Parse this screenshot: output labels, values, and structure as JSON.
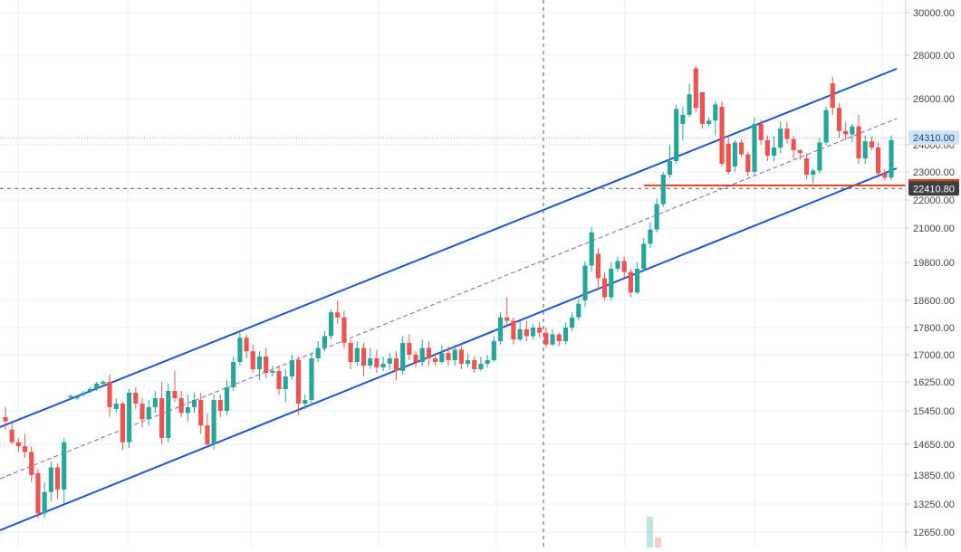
{
  "chart_data": {
    "type": "candlestick",
    "y_axis_ticks": [
      "30000.00",
      "28000.00",
      "26000.00",
      "24000.00",
      "23000.00",
      "22000.00",
      "21000.00",
      "19800.00",
      "18600.00",
      "17800.00",
      "17000.00",
      "16250.00",
      "15450.00",
      "14650.00",
      "13850.00",
      "13250.00",
      "12650.00"
    ],
    "ylim": [
      12400,
      30200
    ],
    "grid": true,
    "price_labels": [
      {
        "text": "24310.00",
        "value": 24310
      },
      {
        "text": "22410.80",
        "value": 22410.8
      }
    ],
    "crosshair_price": 22410.8,
    "horizontal_level": {
      "value": 22520
    },
    "colors": {
      "up": "#26a69a",
      "down": "#ef5350",
      "channel": "#1e53d6",
      "median": "#9c57c4",
      "level": "#d8431f",
      "grid": "#eaeff3",
      "axis_text": "#444444"
    },
    "candles": [
      [
        15300,
        15200,
        15550,
        15000
      ],
      [
        15000,
        14700,
        15150,
        14650
      ],
      [
        14700,
        14600,
        14800,
        14450
      ],
      [
        14600,
        14450,
        14900,
        14300
      ],
      [
        14450,
        13850,
        14600,
        13700
      ],
      [
        13900,
        13050,
        14000,
        12950
      ],
      [
        13050,
        13500,
        13700,
        12950
      ],
      [
        13500,
        14050,
        14200,
        13300
      ],
      [
        14050,
        13550,
        14150,
        13350
      ],
      [
        13550,
        14700,
        14800,
        13250
      ],
      [
        15820,
        15860,
        15900,
        15780
      ],
      [
        15800,
        15830,
        15860,
        15750
      ],
      [
        15900,
        15950,
        16000,
        15850
      ],
      [
        16000,
        16050,
        16100,
        15950
      ],
      [
        16050,
        16200,
        16250,
        16000
      ],
      [
        16200,
        16250,
        16300,
        16150
      ],
      [
        16250,
        15550,
        16450,
        15300
      ],
      [
        15500,
        15650,
        15800,
        15400
      ],
      [
        15650,
        14700,
        15700,
        14500
      ],
      [
        14700,
        15950,
        16050,
        14550
      ],
      [
        15950,
        15650,
        16100,
        15500
      ],
      [
        15650,
        15250,
        15800,
        15050
      ],
      [
        15250,
        15550,
        15750,
        15100
      ],
      [
        15550,
        15800,
        16000,
        15400
      ],
      [
        15800,
        14800,
        16250,
        14650
      ],
      [
        14800,
        16000,
        16200,
        14700
      ],
      [
        16000,
        15800,
        16550,
        15700
      ],
      [
        15800,
        15400,
        16000,
        15300
      ],
      [
        15400,
        15550,
        15900,
        15200
      ],
      [
        15550,
        15750,
        15950,
        15400
      ],
      [
        15750,
        15100,
        15950,
        14900
      ],
      [
        15100,
        14650,
        15400,
        14550
      ],
      [
        14650,
        15750,
        15900,
        14500
      ],
      [
        15750,
        15450,
        15900,
        15300
      ],
      [
        15450,
        16100,
        16300,
        15350
      ],
      [
        16100,
        16800,
        16950,
        16000
      ],
      [
        16800,
        17500,
        17650,
        16700
      ],
      [
        17500,
        17100,
        17600,
        16900
      ],
      [
        17100,
        16600,
        17300,
        16500
      ],
      [
        16600,
        16950,
        17100,
        16300
      ],
      [
        16950,
        16500,
        17200,
        16350
      ],
      [
        16500,
        16550,
        16700,
        16400
      ],
      [
        16550,
        16050,
        16700,
        15900
      ],
      [
        16050,
        16400,
        16600,
        15700
      ],
      [
        16400,
        16850,
        17000,
        16300
      ],
      [
        16850,
        15650,
        16950,
        15350
      ],
      [
        15650,
        15750,
        15900,
        15500
      ],
      [
        15750,
        16900,
        17050,
        15600
      ],
      [
        16900,
        17200,
        17400,
        16800
      ],
      [
        17200,
        17550,
        17700,
        17100
      ],
      [
        17550,
        18250,
        18350,
        17450
      ],
      [
        18250,
        18100,
        18600,
        17900
      ],
      [
        18100,
        17350,
        18300,
        17200
      ],
      [
        17350,
        16800,
        17450,
        16600
      ],
      [
        16800,
        17200,
        17400,
        16700
      ],
      [
        17200,
        16700,
        17350,
        16400
      ],
      [
        16700,
        16900,
        17200,
        16600
      ],
      [
        16900,
        16650,
        17150,
        16500
      ],
      [
        16650,
        16750,
        16950,
        16550
      ],
      [
        16750,
        16900,
        17050,
        16600
      ],
      [
        16900,
        16550,
        17100,
        16300
      ],
      [
        16550,
        17350,
        17550,
        16450
      ],
      [
        17350,
        17000,
        17600,
        16850
      ],
      [
        17000,
        16800,
        17100,
        16650
      ],
      [
        16800,
        17200,
        17450,
        16700
      ],
      [
        17200,
        16900,
        17400,
        16700
      ],
      [
        16900,
        16800,
        17050,
        16700
      ],
      [
        16800,
        17050,
        17300,
        16750
      ],
      [
        17050,
        16850,
        17250,
        16700
      ],
      [
        16850,
        17150,
        17300,
        16700
      ],
      [
        17150,
        16750,
        17250,
        16600
      ],
      [
        16750,
        16850,
        17050,
        16650
      ],
      [
        16850,
        16600,
        16950,
        16500
      ],
      [
        16600,
        16750,
        16950,
        16550
      ],
      [
        16750,
        16850,
        17000,
        16650
      ],
      [
        16850,
        17400,
        17550,
        16800
      ],
      [
        17400,
        18100,
        18250,
        17300
      ],
      [
        18100,
        18000,
        18700,
        17850
      ],
      [
        18000,
        17450,
        18100,
        17300
      ],
      [
        17450,
        17750,
        18000,
        17400
      ],
      [
        17750,
        17550,
        18000,
        17400
      ],
      [
        17550,
        17800,
        17900,
        17450
      ],
      [
        17800,
        17650,
        17950,
        17500
      ],
      [
        17650,
        17300,
        17800,
        17200
      ],
      [
        17300,
        17600,
        17750,
        17250
      ],
      [
        17600,
        17400,
        17650,
        17250
      ],
      [
        17400,
        17800,
        17950,
        17300
      ],
      [
        17800,
        18100,
        18250,
        17700
      ],
      [
        18100,
        18500,
        18650,
        18000
      ],
      [
        18600,
        19700,
        19850,
        18400
      ],
      [
        19700,
        20850,
        21050,
        19500
      ],
      [
        20100,
        19300,
        20300,
        18950
      ],
      [
        19300,
        18700,
        19500,
        18600
      ],
      [
        18700,
        19600,
        19800,
        18600
      ],
      [
        19600,
        19850,
        20000,
        19500
      ],
      [
        19850,
        19500,
        20000,
        19300
      ],
      [
        19500,
        18850,
        19600,
        18700
      ],
      [
        18850,
        19600,
        19800,
        18800
      ],
      [
        19600,
        20450,
        20650,
        19500
      ],
      [
        20450,
        20950,
        21200,
        20300
      ],
      [
        20950,
        21850,
        22050,
        20850
      ],
      [
        21850,
        22900,
        23000,
        21750
      ],
      [
        22900,
        23400,
        24000,
        22800
      ],
      [
        23400,
        25550,
        25750,
        23300
      ],
      [
        24900,
        25300,
        25650,
        24200
      ],
      [
        25300,
        26200,
        26700,
        25200
      ],
      [
        27400,
        25600,
        27500,
        25400
      ],
      [
        26300,
        24900,
        26300,
        24700
      ],
      [
        24900,
        25050,
        25200,
        24800
      ],
      [
        25050,
        25750,
        25900,
        24400
      ],
      [
        25650,
        23300,
        25900,
        23200
      ],
      [
        24050,
        23000,
        24400,
        22900
      ],
      [
        23200,
        24100,
        24200,
        23000
      ],
      [
        24100,
        23650,
        24250,
        23550
      ],
      [
        23650,
        23000,
        23750,
        22850
      ],
      [
        23000,
        24900,
        25200,
        22900
      ],
      [
        24900,
        24200,
        25100,
        24000
      ],
      [
        24200,
        23600,
        24400,
        23400
      ],
      [
        23600,
        23900,
        24400,
        23400
      ],
      [
        23900,
        24700,
        25000,
        23700
      ],
      [
        24700,
        24250,
        25000,
        24050
      ],
      [
        24250,
        23800,
        24400,
        23500
      ],
      [
        23800,
        23700,
        23850,
        23450
      ],
      [
        23500,
        22900,
        23650,
        22750
      ],
      [
        22900,
        23050,
        23150,
        22600
      ],
      [
        23050,
        24100,
        24300,
        22950
      ],
      [
        24100,
        25500,
        25650,
        24000
      ],
      [
        26700,
        25600,
        27000,
        25300
      ],
      [
        25600,
        24600,
        25800,
        24300
      ],
      [
        24600,
        24450,
        25000,
        24200
      ],
      [
        24450,
        24800,
        24900,
        24100
      ],
      [
        24800,
        23500,
        25300,
        23300
      ],
      [
        23500,
        24150,
        24400,
        23300
      ],
      [
        24150,
        23900,
        24350,
        23800
      ],
      [
        23900,
        22950,
        24100,
        22800
      ],
      [
        22950,
        22800,
        23100,
        22700
      ],
      [
        22800,
        24200,
        24400,
        22700
      ]
    ]
  }
}
